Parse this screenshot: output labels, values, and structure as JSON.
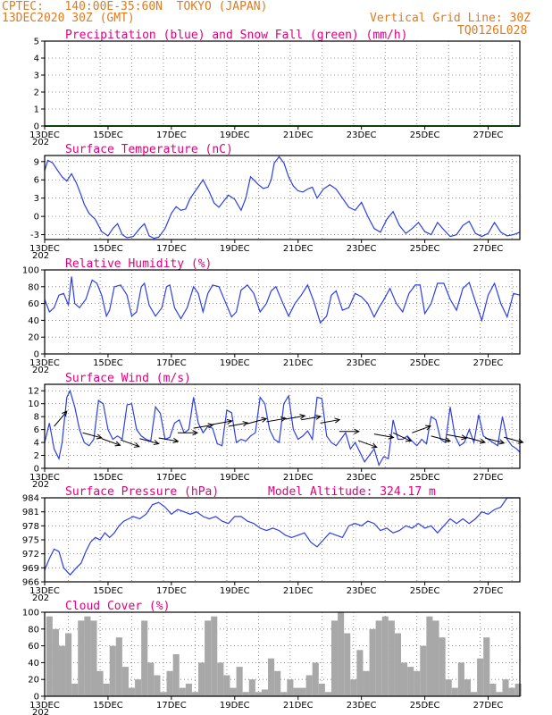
{
  "header": {
    "line1_left": "CPTEC:   140:00E-35:60N  TOKYO (JAPAN)",
    "line2_left": "13DEC2020 30Z (GMT)",
    "line2_right": "Vertical Grid Line: 30Z",
    "line3_right": "TQ0126L028"
  },
  "colors": {
    "header": "#e07a1e",
    "title": "#e0007a",
    "line": "#2d3ee6",
    "snow": "#1fa31f",
    "arrow": "#000000",
    "cloud_fill": "#a8a8a8"
  },
  "x_axis": {
    "tick_labels": [
      "13DEC",
      "15DEC",
      "17DEC",
      "19DEC",
      "21DEC",
      "23DEC",
      "25DEC",
      "27DEC"
    ],
    "year_fragment": "202"
  },
  "chart_data": [
    {
      "type": "line",
      "title": "Precipitation (blue) and Snow Fall (green) (mm/h)",
      "ylim": [
        0,
        5
      ],
      "yticks": [
        "0",
        "1",
        "2",
        "3",
        "4",
        "5"
      ],
      "series": [
        {
          "name": "Precipitation",
          "color": "blue",
          "x": [
            0,
            15
          ],
          "y": [
            0,
            0
          ]
        },
        {
          "name": "Snow Fall",
          "color": "green",
          "x": [
            0,
            15
          ],
          "y": [
            0,
            0
          ]
        }
      ]
    },
    {
      "type": "line",
      "title": "Surface Temperature (nC)",
      "ylim": [
        -3.8,
        10
      ],
      "yticks": [
        "-3",
        "0",
        "3",
        "6",
        "9"
      ],
      "series": [
        {
          "x": [
            0,
            0.1,
            0.25,
            0.4,
            0.55,
            0.7,
            0.85,
            1.0,
            1.15,
            1.25,
            1.4,
            1.6,
            1.8,
            2.0,
            2.15,
            2.3,
            2.45,
            2.6,
            2.8,
            3.0,
            3.15,
            3.3,
            3.45,
            3.6,
            3.8,
            4.0,
            4.15,
            4.3,
            4.45,
            4.6,
            4.8,
            5.0,
            5.2,
            5.35,
            5.5,
            5.65,
            5.8,
            6.0,
            6.2,
            6.35,
            6.5,
            6.6,
            6.75,
            6.9,
            7.05,
            7.15,
            7.25,
            7.4,
            7.55,
            7.7,
            7.85,
            8.0,
            8.15,
            8.3,
            8.45,
            8.6,
            8.8,
            9.0,
            9.2,
            9.4,
            9.6,
            9.8,
            10.0,
            10.2,
            10.4,
            10.6,
            10.8,
            11.0,
            11.2,
            11.4,
            11.6,
            11.8,
            12.0,
            12.2,
            12.4,
            12.6,
            12.8,
            13.0,
            13.2,
            13.4,
            13.6,
            13.8,
            14.0,
            14.2,
            14.4,
            14.6,
            14.8,
            15.0
          ],
          "y": [
            7.5,
            9.2,
            8.8,
            7.6,
            6.5,
            5.8,
            7.0,
            5.5,
            3.5,
            2.0,
            0.5,
            -0.5,
            -2.5,
            -3.2,
            -2.0,
            -1.2,
            -3.0,
            -3.5,
            -3.3,
            -2.0,
            -1.2,
            -3.2,
            -3.6,
            -3.4,
            -2.0,
            0.5,
            1.6,
            1.0,
            1.2,
            3.0,
            4.5,
            6.0,
            4.0,
            2.2,
            1.5,
            2.5,
            3.5,
            2.8,
            1.0,
            3.0,
            6.5,
            6.0,
            5.2,
            4.6,
            4.8,
            6.0,
            8.8,
            9.8,
            8.8,
            6.5,
            5.0,
            4.2,
            4.0,
            4.5,
            4.8,
            3.0,
            4.5,
            5.2,
            4.5,
            3.0,
            1.5,
            1.0,
            2.3,
            0.0,
            -2.0,
            -2.6,
            -0.5,
            0.8,
            -1.5,
            -2.8,
            -2.0,
            -1.0,
            -2.5,
            -3.0,
            -1.0,
            -2.2,
            -3.3,
            -3.0,
            -1.5,
            -0.8,
            -2.8,
            -3.3,
            -2.8,
            -1.0,
            -2.6,
            -3.2,
            -3.0,
            -2.6
          ]
        }
      ]
    },
    {
      "type": "line",
      "title": "Relative Humidity (%)",
      "ylim": [
        0,
        100
      ],
      "yticks": [
        "0",
        "20",
        "40",
        "60",
        "80",
        "100"
      ],
      "series": [
        {
          "x": [
            0,
            0.15,
            0.3,
            0.45,
            0.6,
            0.75,
            0.85,
            0.95,
            1.1,
            1.3,
            1.5,
            1.65,
            1.8,
            1.95,
            2.05,
            2.2,
            2.4,
            2.6,
            2.75,
            2.9,
            3.05,
            3.15,
            3.3,
            3.5,
            3.7,
            3.85,
            3.95,
            4.1,
            4.3,
            4.5,
            4.7,
            4.85,
            5.0,
            5.15,
            5.3,
            5.5,
            5.7,
            5.9,
            6.05,
            6.2,
            6.4,
            6.6,
            6.8,
            7.0,
            7.15,
            7.3,
            7.5,
            7.7,
            7.9,
            8.1,
            8.3,
            8.5,
            8.7,
            8.9,
            9.05,
            9.2,
            9.4,
            9.6,
            9.8,
            10.0,
            10.2,
            10.4,
            10.55,
            10.7,
            10.9,
            11.1,
            11.3,
            11.5,
            11.7,
            11.85,
            12.0,
            12.2,
            12.4,
            12.6,
            12.8,
            13.0,
            13.2,
            13.4,
            13.6,
            13.8,
            14.0,
            14.2,
            14.4,
            14.6,
            14.8,
            15.0
          ],
          "y": [
            65,
            50,
            55,
            70,
            72,
            58,
            92,
            60,
            55,
            65,
            88,
            84,
            70,
            45,
            52,
            80,
            82,
            70,
            45,
            50,
            80,
            84,
            58,
            45,
            55,
            80,
            82,
            55,
            42,
            55,
            80,
            72,
            50,
            72,
            82,
            80,
            62,
            44,
            50,
            76,
            82,
            72,
            50,
            60,
            75,
            80,
            62,
            45,
            60,
            70,
            82,
            62,
            37,
            45,
            70,
            75,
            52,
            55,
            72,
            68,
            60,
            44,
            55,
            64,
            78,
            60,
            50,
            72,
            82,
            82,
            48,
            60,
            84,
            84,
            65,
            52,
            78,
            85,
            62,
            40,
            70,
            84,
            60,
            44,
            72,
            70
          ]
        }
      ]
    },
    {
      "type": "line",
      "title": "Surface Wind (m/s)",
      "ylim": [
        0,
        13
      ],
      "yticks": [
        "0",
        "2",
        "4",
        "6",
        "8",
        "10",
        "12"
      ],
      "series": [
        {
          "x": [
            0,
            0.15,
            0.3,
            0.45,
            0.55,
            0.7,
            0.8,
            0.95,
            1.1,
            1.25,
            1.4,
            1.55,
            1.7,
            1.85,
            2.0,
            2.15,
            2.3,
            2.45,
            2.6,
            2.75,
            2.9,
            3.05,
            3.2,
            3.35,
            3.5,
            3.65,
            3.8,
            3.95,
            4.1,
            4.25,
            4.4,
            4.55,
            4.7,
            4.85,
            5.0,
            5.15,
            5.3,
            5.45,
            5.6,
            5.75,
            5.9,
            6.05,
            6.2,
            6.35,
            6.5,
            6.65,
            6.8,
            6.95,
            7.1,
            7.25,
            7.4,
            7.55,
            7.7,
            7.85,
            8.0,
            8.15,
            8.3,
            8.45,
            8.6,
            8.75,
            8.9,
            9.05,
            9.2,
            9.35,
            9.5,
            9.65,
            9.8,
            9.95,
            10.1,
            10.25,
            10.4,
            10.55,
            10.7,
            10.85,
            11.0,
            11.15,
            11.3,
            11.45,
            11.6,
            11.75,
            11.9,
            12.05,
            12.2,
            12.35,
            12.5,
            12.65,
            12.8,
            12.95,
            13.1,
            13.25,
            13.4,
            13.55,
            13.7,
            13.85,
            14.0,
            14.15,
            14.3,
            14.45,
            14.6,
            14.75,
            14.9,
            15.0
          ],
          "y": [
            4,
            7,
            3,
            1.5,
            4,
            11,
            12,
            9.5,
            6,
            4,
            3.5,
            4.5,
            10.5,
            10,
            6,
            4.5,
            5,
            4.5,
            9.8,
            10,
            6,
            5,
            4.5,
            4.2,
            9.5,
            8.5,
            4.5,
            4.8,
            7,
            7.5,
            5.5,
            6,
            11,
            7,
            5.5,
            6.5,
            6.2,
            3.8,
            3.5,
            9,
            8.6,
            4,
            4.5,
            4.2,
            5,
            5.5,
            11,
            10,
            6,
            4.5,
            4,
            10,
            11.2,
            6,
            4.5,
            5,
            5.8,
            4.5,
            11,
            10.8,
            5,
            4,
            3.5,
            4.5,
            5.5,
            3,
            4,
            2.5,
            1,
            2,
            3,
            0.5,
            1.8,
            1.5,
            7.5,
            4.5,
            4.5,
            5,
            4.2,
            3.5,
            4.5,
            3.8,
            8,
            7.5,
            4.5,
            4,
            9.5,
            5,
            3.5,
            4,
            6,
            4,
            8.3,
            5,
            4.5,
            4,
            3.5,
            8,
            4.5,
            3.5,
            3,
            2.5
          ]
        }
      ]
    },
    {
      "type": "line",
      "title": "Surface Pressure (hPa)",
      "annotation": "Model Altitude: 324.17 m",
      "ylim": [
        966,
        984
      ],
      "yticks": [
        "966",
        "969",
        "972",
        "975",
        "978",
        "981",
        "984"
      ],
      "series": [
        {
          "x": [
            0,
            0.15,
            0.3,
            0.45,
            0.6,
            0.8,
            1.0,
            1.15,
            1.3,
            1.45,
            1.6,
            1.75,
            1.9,
            2.05,
            2.2,
            2.35,
            2.5,
            2.65,
            2.8,
            3.0,
            3.2,
            3.4,
            3.6,
            3.8,
            4.0,
            4.2,
            4.4,
            4.6,
            4.8,
            5.0,
            5.2,
            5.4,
            5.6,
            5.8,
            6.0,
            6.2,
            6.4,
            6.6,
            6.8,
            7.0,
            7.2,
            7.4,
            7.6,
            7.8,
            8.0,
            8.2,
            8.4,
            8.6,
            8.8,
            9.0,
            9.2,
            9.4,
            9.6,
            9.8,
            10.0,
            10.2,
            10.4,
            10.6,
            10.8,
            11.0,
            11.2,
            11.4,
            11.6,
            11.8,
            12.0,
            12.2,
            12.4,
            12.6,
            12.8,
            13.0,
            13.2,
            13.4,
            13.6,
            13.8,
            14.0,
            14.2,
            14.4,
            14.6,
            14.8,
            15.0
          ],
          "y": [
            968.5,
            971,
            973,
            972.5,
            969,
            967.5,
            969,
            970,
            972.5,
            974.5,
            975.5,
            975,
            976.5,
            975.5,
            976.5,
            978,
            979,
            979.5,
            980,
            979.5,
            980.5,
            982.5,
            983,
            982,
            980.5,
            981.5,
            981,
            980.5,
            981,
            980,
            979.5,
            980,
            979,
            978.5,
            980,
            980,
            979,
            978.5,
            977.5,
            977,
            977.5,
            977,
            976,
            975.5,
            976,
            976.5,
            974.5,
            973.5,
            975,
            976.5,
            976,
            975.5,
            978,
            978.5,
            978,
            979,
            978.5,
            977,
            977.5,
            976.5,
            977,
            978,
            977.5,
            978.5,
            977.5,
            978,
            976.5,
            978,
            979.5,
            978.5,
            979.5,
            978.5,
            979.5,
            981,
            980.5,
            981.5,
            982,
            984,
            984,
            984
          ]
        }
      ]
    },
    {
      "type": "bar",
      "title": "Cloud Cover (%)",
      "ylim": [
        0,
        100
      ],
      "yticks": [
        "0",
        "20",
        "40",
        "60",
        "80",
        "100"
      ],
      "series": [
        {
          "x": [
            0.15,
            0.35,
            0.55,
            0.75,
            0.95,
            1.15,
            1.35,
            1.55,
            1.75,
            1.95,
            2.15,
            2.35,
            2.55,
            2.75,
            2.95,
            3.15,
            3.35,
            3.55,
            3.75,
            3.95,
            4.15,
            4.35,
            4.55,
            4.75,
            4.95,
            5.15,
            5.35,
            5.55,
            5.75,
            5.95,
            6.15,
            6.35,
            6.55,
            6.75,
            6.95,
            7.15,
            7.35,
            7.55,
            7.75,
            7.95,
            8.15,
            8.35,
            8.55,
            8.75,
            8.95,
            9.15,
            9.35,
            9.55,
            9.75,
            9.95,
            10.15,
            10.35,
            10.55,
            10.75,
            10.95,
            11.15,
            11.35,
            11.55,
            11.75,
            11.95,
            12.15,
            12.35,
            12.55,
            12.75,
            12.95,
            13.15,
            13.35,
            13.55,
            13.75,
            13.95,
            14.15,
            14.35,
            14.55,
            14.75,
            14.95
          ],
          "y": [
            95,
            80,
            60,
            75,
            15,
            90,
            95,
            90,
            30,
            15,
            60,
            70,
            35,
            10,
            20,
            90,
            40,
            25,
            5,
            30,
            50,
            10,
            15,
            5,
            40,
            90,
            95,
            40,
            25,
            10,
            35,
            5,
            20,
            5,
            8,
            45,
            30,
            5,
            20,
            10,
            10,
            25,
            40,
            15,
            5,
            90,
            100,
            75,
            20,
            55,
            30,
            80,
            90,
            95,
            90,
            75,
            40,
            35,
            30,
            60,
            95,
            90,
            70,
            20,
            10,
            40,
            20,
            5,
            45,
            70,
            15,
            5,
            20,
            10,
            15
          ]
        }
      ]
    }
  ]
}
